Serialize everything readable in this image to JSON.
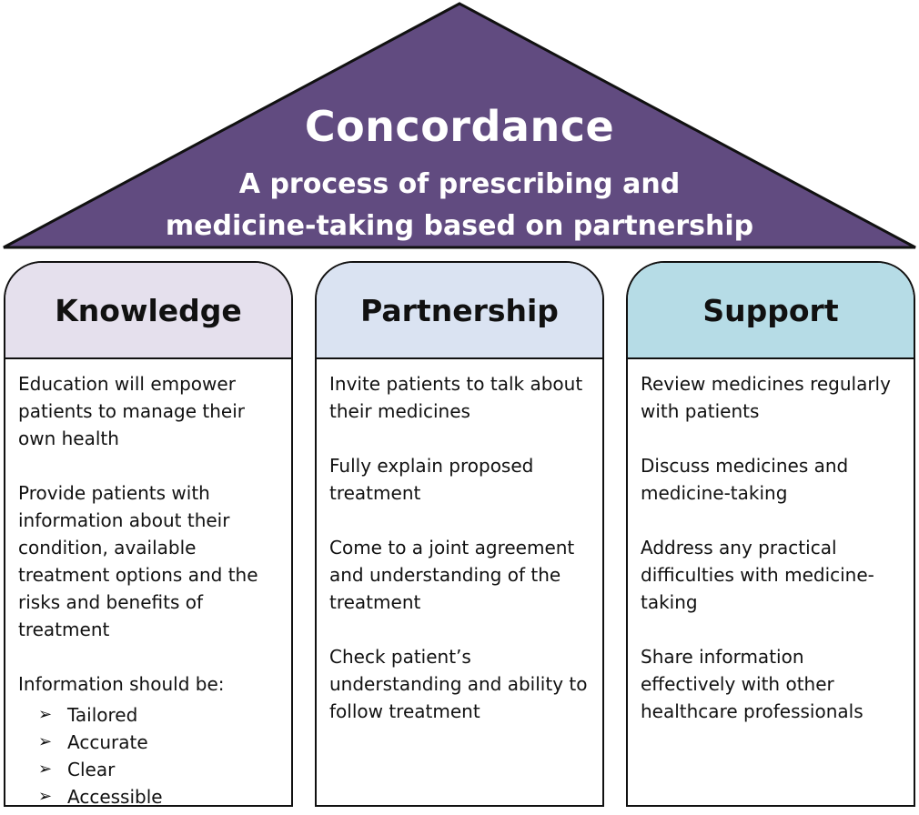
{
  "colors": {
    "roof": "#614b80",
    "knowledge_header": "#e5e0ed",
    "partnership_header": "#dae3f2",
    "support_header": "#b6dce6"
  },
  "roof": {
    "title": "Concordance",
    "subtitle_line1": "A process of prescribing and",
    "subtitle_line2": "medicine-taking based on partnership"
  },
  "pillars": [
    {
      "title": "Knowledge",
      "items": [
        "Education will empower patients to manage their own health",
        "Provide patients with information about their condition, available treatment options and the risks and benefits of treatment",
        "Information should be:"
      ],
      "bullets": [
        "Tailored",
        "Accurate",
        "Clear",
        "Accessible"
      ]
    },
    {
      "title": "Partnership",
      "items": [
        "Invite patients to talk about their medicines",
        "Fully explain proposed treatment",
        "Come to a joint agreement and understanding of the treatment",
        "Check patient’s understanding and ability to follow treatment"
      ]
    },
    {
      "title": "Support",
      "items": [
        "Review medicines regularly with patients",
        "Discuss medicines and medicine-taking",
        "Address any practical difficulties with medicine-taking",
        "Share information effectively with other healthcare professionals"
      ]
    }
  ]
}
